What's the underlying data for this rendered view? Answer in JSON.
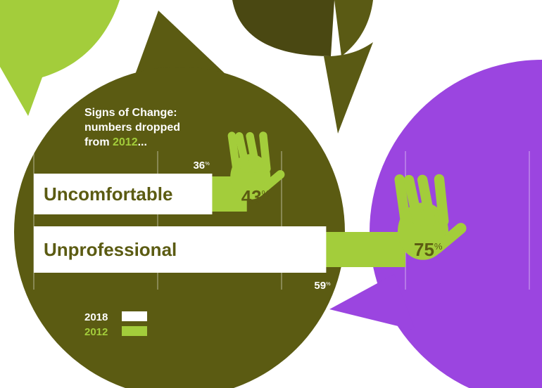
{
  "chart_data": {
    "type": "bar",
    "orientation": "horizontal",
    "title": {
      "line1": "Signs of Change:",
      "line2": "numbers dropped",
      "line3": [
        "from ",
        "2012",
        "..."
      ]
    },
    "categories": [
      "Uncomfortable",
      "Unprofessional"
    ],
    "series": [
      {
        "name": "2018",
        "color": "#ffffff",
        "values": [
          36,
          59
        ],
        "value_labels": [
          "36%",
          "59%"
        ]
      },
      {
        "name": "2012",
        "color": "#a3cd3b",
        "values": [
          43,
          75
        ],
        "value_labels": [
          "43%",
          "75%"
        ]
      }
    ],
    "xlim": [
      0,
      100
    ],
    "xticks": [
      0,
      25,
      50,
      75,
      100
    ],
    "grid": true
  }
}
